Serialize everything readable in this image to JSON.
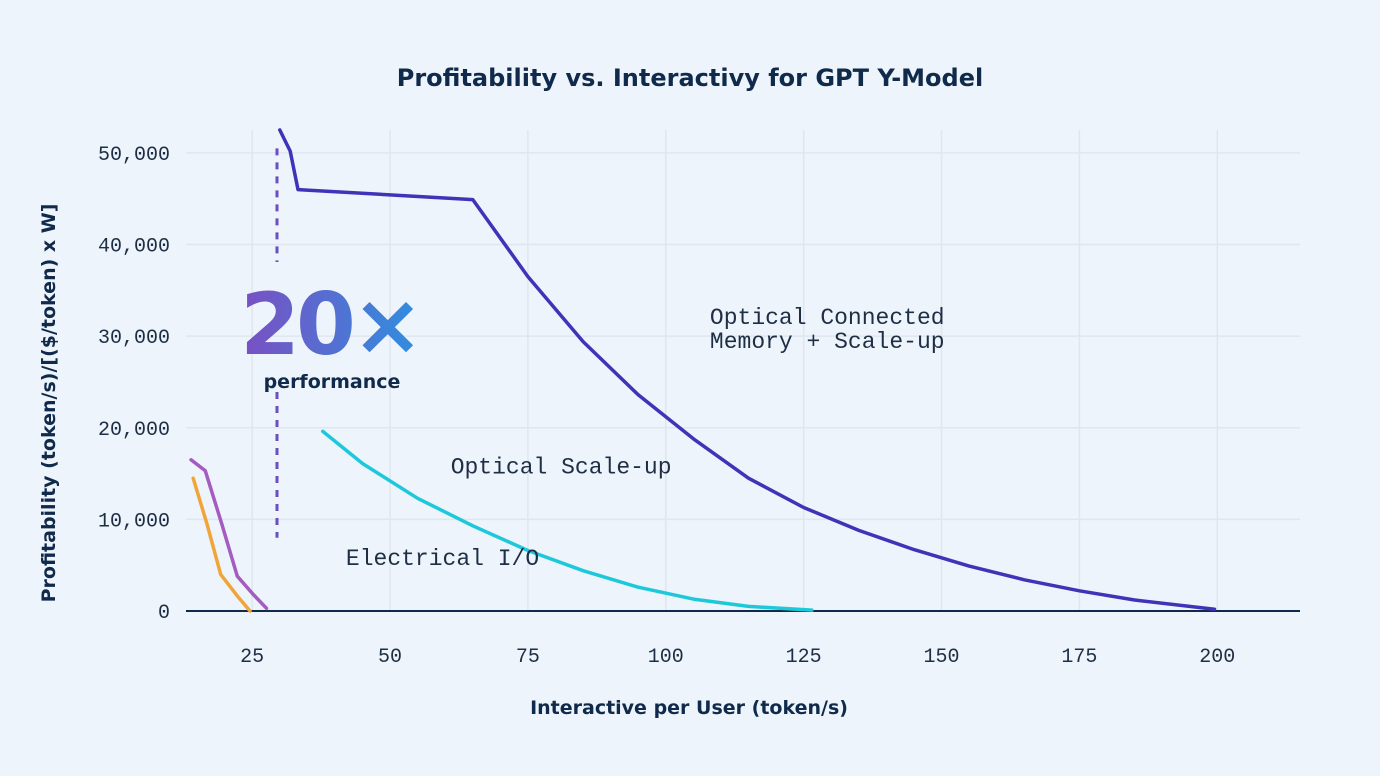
{
  "chart_data": {
    "type": "line",
    "title": "Profitability vs. Interactivy for GPT Y-Model",
    "xlabel": "Interactive per User (token/s)",
    "ylabel": "Profitability (token/s)/[($/token) x W]",
    "xlim": [
      13,
      215
    ],
    "ylim": [
      0,
      52500
    ],
    "x_ticks": [
      25,
      50,
      75,
      100,
      125,
      150,
      175,
      200
    ],
    "x_tick_labels": [
      "25",
      "50",
      "75",
      "100",
      "125",
      "150",
      "175",
      "200"
    ],
    "y_ticks": [
      0,
      10000,
      20000,
      30000,
      40000,
      50000
    ],
    "y_tick_labels": [
      "0",
      "10,000",
      "20,000",
      "30,000",
      "40,000",
      "50,000"
    ],
    "grid": true,
    "series": [
      {
        "name": "Electrical I/O",
        "color": "#f0a53a",
        "x": [
          14.3,
          16.8,
          19.3,
          22.5,
          24.6
        ],
        "y": [
          14500,
          9500,
          4000,
          1500,
          0
        ]
      },
      {
        "name": "Electrical I/O",
        "color": "#a45cc0",
        "x": [
          13.9,
          16.5,
          19.5,
          22.3,
          25.2,
          27.6
        ],
        "y": [
          16500,
          15300,
          9500,
          3800,
          1800,
          300
        ]
      },
      {
        "name": "Optical Scale-up",
        "color": "#1ec8db",
        "x": [
          37.8,
          45,
          55,
          65,
          75,
          85,
          95,
          105,
          115,
          126.5
        ],
        "y": [
          19600,
          16100,
          12300,
          9300,
          6600,
          4400,
          2600,
          1300,
          500,
          100
        ]
      },
      {
        "name": "Optical Connected Memory + Scale-up",
        "color": "#3f33b8",
        "x": [
          30,
          31.9,
          33.3,
          65,
          75,
          85,
          95,
          105,
          115,
          125,
          135,
          145,
          155,
          165,
          175,
          185,
          199.5
        ],
        "y": [
          52500,
          50200,
          46000,
          44900,
          36500,
          29400,
          23600,
          18800,
          14500,
          11300,
          8800,
          6700,
          4900,
          3400,
          2200,
          1200,
          200
        ]
      }
    ],
    "annotations": [
      {
        "text": "Electrical I/O",
        "x": 42,
        "y": 5000
      },
      {
        "text": "Optical Scale-up",
        "x": 61,
        "y": 15000
      },
      {
        "text": "Optical Connected\nMemory + Scale-up",
        "x": 108,
        "y": 30000
      }
    ],
    "callout": {
      "big_text": "20×",
      "sub_text": "performance",
      "line_x": 29.5,
      "line_y": [
        8000,
        50500
      ],
      "gradient_colors": [
        "#7b4fc2",
        "#2f8fe0"
      ]
    }
  },
  "colors": {
    "background": "#eef4fb",
    "grid": "#dfe6ef",
    "axis": "#0f2a4a",
    "text": "#1e2f45"
  }
}
